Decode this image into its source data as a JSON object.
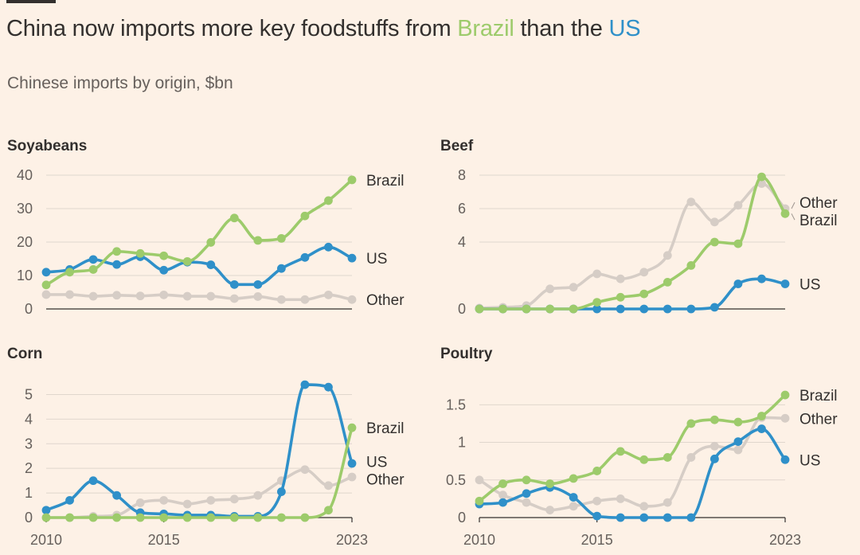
{
  "header": {
    "title_prefix": "China now imports more key foodstuffs from ",
    "title_brazil": "Brazil",
    "title_middle": " than the ",
    "title_us": "US",
    "subtitle": "Chinese imports by origin, $bn"
  },
  "colors": {
    "Brazil": "#9dcb6b",
    "US": "#2f90c9",
    "Other": "#d6cdc6",
    "background": "#fdf1e6",
    "text": "#33302e"
  },
  "chart_data": [
    {
      "type": "line",
      "title": "Soyabeans",
      "x": [
        2010,
        2011,
        2012,
        2013,
        2014,
        2015,
        2016,
        2017,
        2018,
        2019,
        2020,
        2021,
        2022,
        2023
      ],
      "xticks": [],
      "ylim": [
        0,
        40
      ],
      "yticks": [
        0,
        10,
        20,
        30,
        40
      ],
      "ytick_labels": [
        "0",
        "10",
        "20",
        "30",
        "40"
      ],
      "series": [
        {
          "name": "Other",
          "label": "Other",
          "values": [
            4.3,
            4.3,
            3.8,
            4.1,
            3.9,
            4.2,
            3.8,
            3.8,
            3.1,
            3.7,
            2.8,
            2.8,
            4.2,
            2.8
          ]
        },
        {
          "name": "US",
          "label": "US",
          "values": [
            11,
            11.8,
            14.8,
            13.3,
            15.6,
            11.6,
            14,
            13.2,
            7.3,
            7.3,
            12.1,
            15.4,
            18.5,
            15.2
          ]
        },
        {
          "name": "Brazil",
          "label": "Brazil",
          "values": [
            7.2,
            11,
            11.8,
            17.2,
            16.6,
            15.9,
            14.2,
            19.9,
            27.2,
            20.5,
            21.1,
            27.8,
            32.4,
            38.6
          ]
        }
      ]
    },
    {
      "type": "line",
      "title": "Beef",
      "x": [
        2010,
        2011,
        2012,
        2013,
        2014,
        2015,
        2016,
        2017,
        2018,
        2019,
        2020,
        2021,
        2022,
        2023
      ],
      "xticks": [],
      "ylim": [
        0,
        8
      ],
      "yticks": [
        0,
        4,
        6,
        8
      ],
      "ytick_labels": [
        "0",
        "4",
        "6",
        "8"
      ],
      "series": [
        {
          "name": "Other",
          "label": "Other",
          "values": [
            0.05,
            0.1,
            0.2,
            1.2,
            1.3,
            2.1,
            1.8,
            2.2,
            3.2,
            6.4,
            5.2,
            6.2,
            7.5,
            6
          ]
        },
        {
          "name": "US",
          "label": "US",
          "values": [
            0,
            0,
            0,
            0,
            0,
            0,
            0,
            0,
            0,
            0,
            0.1,
            1.5,
            1.8,
            1.5
          ]
        },
        {
          "name": "Brazil",
          "label": "Brazil",
          "values": [
            0,
            0,
            0,
            0,
            0,
            0.4,
            0.7,
            0.9,
            1.6,
            2.6,
            4,
            3.9,
            7.9,
            5.7
          ]
        }
      ]
    },
    {
      "type": "line",
      "title": "Corn",
      "x": [
        2010,
        2011,
        2012,
        2013,
        2014,
        2015,
        2016,
        2017,
        2018,
        2019,
        2020,
        2021,
        2022,
        2023
      ],
      "xticks": [
        2010,
        2015,
        2023
      ],
      "xtick_labels": [
        "2010",
        "2015",
        "2023"
      ],
      "ylim": [
        0,
        5.5
      ],
      "yticks": [
        0,
        1,
        2,
        3,
        4,
        5
      ],
      "ytick_labels": [
        "0",
        "1",
        "2",
        "3",
        "4",
        "5"
      ],
      "series": [
        {
          "name": "Other",
          "label": "Other",
          "values": [
            0,
            0,
            0.05,
            0.1,
            0.6,
            0.7,
            0.55,
            0.7,
            0.75,
            0.9,
            1.5,
            1.95,
            1.3,
            1.65
          ]
        },
        {
          "name": "US",
          "label": "US",
          "values": [
            0.3,
            0.7,
            1.5,
            0.9,
            0.2,
            0.15,
            0.1,
            0.1,
            0.05,
            0.05,
            1.05,
            5.4,
            5.3,
            2.2
          ]
        },
        {
          "name": "Brazil",
          "label": "Brazil",
          "values": [
            0,
            0,
            0,
            0,
            0,
            0,
            0,
            0,
            0,
            0,
            0,
            0,
            0.3,
            3.65
          ]
        }
      ]
    },
    {
      "type": "line",
      "title": "Poultry",
      "x": [
        2010,
        2011,
        2012,
        2013,
        2014,
        2015,
        2016,
        2017,
        2018,
        2019,
        2020,
        2021,
        2022,
        2023
      ],
      "xticks": [
        2010,
        2015,
        2023
      ],
      "xtick_labels": [
        "2010",
        "2015",
        "2023"
      ],
      "ylim": [
        0,
        1.8
      ],
      "yticks": [
        0,
        0.5,
        1,
        1.5
      ],
      "ytick_labels": [
        "0",
        "0.5",
        "1",
        "1.5"
      ],
      "series": [
        {
          "name": "Other",
          "label": "Other",
          "values": [
            0.5,
            0.3,
            0.2,
            0.1,
            0.15,
            0.22,
            0.25,
            0.15,
            0.2,
            0.8,
            0.95,
            0.9,
            1.33,
            1.32
          ]
        },
        {
          "name": "US",
          "label": "US",
          "values": [
            0.18,
            0.2,
            0.32,
            0.4,
            0.27,
            0.02,
            0,
            0,
            0,
            0,
            0.78,
            1.01,
            1.18,
            0.77
          ]
        },
        {
          "name": "Brazil",
          "label": "Brazil",
          "values": [
            0.22,
            0.45,
            0.5,
            0.45,
            0.52,
            0.62,
            0.88,
            0.77,
            0.8,
            1.25,
            1.3,
            1.27,
            1.35,
            1.63
          ]
        }
      ]
    }
  ]
}
